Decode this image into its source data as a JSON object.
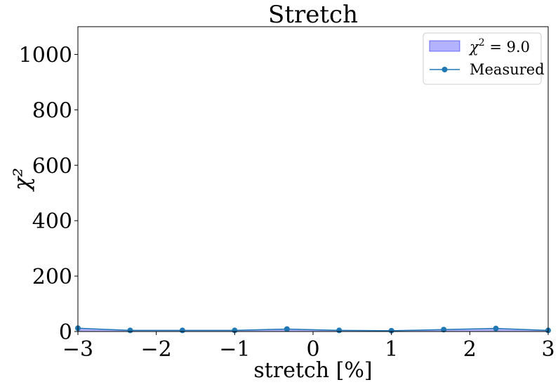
{
  "chart_data": {
    "type": "line",
    "title": "Stretch",
    "xlabel": "stretch [%]",
    "ylabel": "χ²",
    "xlim": [
      -3,
      3
    ],
    "ylim": [
      0,
      1100
    ],
    "x_ticks": [
      -3,
      -2,
      -1,
      0,
      1,
      2,
      3
    ],
    "x_tick_labels": [
      "−3",
      "−2",
      "−1",
      "0",
      "1",
      "2",
      "3"
    ],
    "y_ticks": [
      0,
      200,
      400,
      600,
      800,
      1000
    ],
    "y_tick_labels": [
      "0",
      "200",
      "400",
      "600",
      "800",
      "1000"
    ],
    "grid": false,
    "legend_position": "top-right",
    "series": [
      {
        "name": "Measured",
        "kind": "line-marker",
        "color": "#1f77b4",
        "x": [
          -3.0,
          -2.333,
          -1.667,
          -1.0,
          -0.333,
          0.333,
          1.0,
          1.667,
          2.333,
          3.0
        ],
        "y": [
          12,
          4,
          4,
          4,
          9,
          4,
          3,
          7,
          11,
          4
        ]
      }
    ],
    "band": {
      "label_prefix": "χ",
      "label_exp": "2",
      "label_suffix": " = 9.0",
      "threshold": 9.0,
      "color": "#0000ff",
      "opacity": 0.3
    }
  }
}
